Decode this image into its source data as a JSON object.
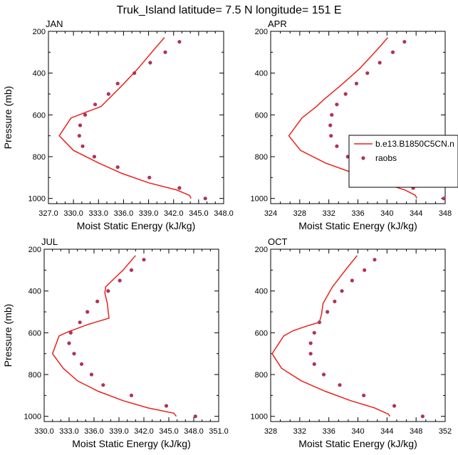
{
  "figure_title": "Truk_Island  latitude= 7.5 N longitude= 151 E",
  "colors": {
    "model": "#e8221c",
    "obs": "#b0325a",
    "axis": "#000000"
  },
  "legend": {
    "model_label": "b.e13.B1850C5CN.n",
    "obs_label": "raobs",
    "placement": "right edge of APR panel"
  },
  "chart_data": [
    {
      "type": "line",
      "title": "JAN",
      "xlabel": "Moist Static Energy (kJ/kg)",
      "ylabel": "Pressure (mb)",
      "xlim": [
        327,
        348
      ],
      "xticks": [
        327,
        330,
        333,
        336,
        339,
        342,
        345,
        348
      ],
      "xticklabels": [
        "327.0",
        "330.0",
        "333.0",
        "336.0",
        "339.0",
        "342.0",
        "345.0",
        "348.0"
      ],
      "ylim": [
        1025,
        200
      ],
      "yticks": [
        200,
        400,
        600,
        800,
        1000
      ],
      "yticklabels": [
        "200",
        "400",
        "600",
        "800",
        "1000"
      ],
      "series": [
        {
          "name": "b.e13.B1850C5CN.n",
          "style": "line",
          "points": [
            [
              340.9,
              230
            ],
            [
              339.6,
              290
            ],
            [
              337.7,
              380
            ],
            [
              335.8,
              460
            ],
            [
              333.3,
              560
            ],
            [
              329.7,
              615
            ],
            [
              328.3,
              700
            ],
            [
              330.0,
              770
            ],
            [
              333.0,
              830
            ],
            [
              335.8,
              880
            ],
            [
              339.0,
              925
            ],
            [
              342.4,
              960
            ],
            [
              343.9,
              985
            ],
            [
              344.1,
              1000
            ]
          ]
        },
        {
          "name": "raobs",
          "style": "marker",
          "points": [
            [
              342.7,
              250
            ],
            [
              341.0,
              300
            ],
            [
              339.2,
              350
            ],
            [
              337.3,
              400
            ],
            [
              335.3,
              450
            ],
            [
              334.2,
              500
            ],
            [
              332.6,
              550
            ],
            [
              331.4,
              600
            ],
            [
              330.8,
              650
            ],
            [
              330.7,
              700
            ],
            [
              331.1,
              750
            ],
            [
              332.5,
              800
            ],
            [
              335.3,
              850
            ],
            [
              339.1,
              900
            ],
            [
              342.7,
              950
            ],
            [
              345.8,
              1000
            ]
          ]
        }
      ]
    },
    {
      "type": "line",
      "title": "APR",
      "xlabel": "Moist Static Energy (kJ/kg)",
      "ylabel": "",
      "xlim": [
        324,
        348
      ],
      "xticks": [
        324,
        328,
        332,
        336,
        340,
        344,
        348
      ],
      "xticklabels": [
        "324",
        "328",
        "332",
        "336",
        "340",
        "344",
        "348"
      ],
      "ylim": [
        1025,
        200
      ],
      "yticks": [
        200,
        400,
        600,
        800,
        1000
      ],
      "yticklabels": [
        "200",
        "400",
        "600",
        "800",
        "1000"
      ],
      "series": [
        {
          "name": "b.e13.B1850C5CN.n",
          "style": "line",
          "points": [
            [
              340.1,
              230
            ],
            [
              338.6,
              290
            ],
            [
              336.2,
              380
            ],
            [
              333.6,
              460
            ],
            [
              331.2,
              530
            ],
            [
              330.3,
              560
            ],
            [
              328.3,
              615
            ],
            [
              326.5,
              700
            ],
            [
              328.1,
              770
            ],
            [
              331.5,
              830
            ],
            [
              335.5,
              880
            ],
            [
              339.3,
              925
            ],
            [
              342.5,
              960
            ],
            [
              343.9,
              985
            ],
            [
              344.1,
              1000
            ]
          ]
        },
        {
          "name": "raobs",
          "style": "marker",
          "points": [
            [
              342.4,
              250
            ],
            [
              340.8,
              300
            ],
            [
              339.0,
              350
            ],
            [
              337.3,
              400
            ],
            [
              335.8,
              450
            ],
            [
              334.3,
              500
            ],
            [
              333.1,
              550
            ],
            [
              332.4,
              600
            ],
            [
              332.2,
              650
            ],
            [
              332.3,
              700
            ],
            [
              333.1,
              750
            ],
            [
              334.6,
              800
            ],
            [
              336.5,
              850
            ],
            [
              339.2,
              900
            ],
            [
              343.6,
              950
            ],
            [
              347.8,
              1000
            ]
          ]
        }
      ]
    },
    {
      "type": "line",
      "title": "JUL",
      "xlabel": "Moist Static Energy (kJ/kg)",
      "ylabel": "Pressure (mb)",
      "xlim": [
        330,
        351
      ],
      "xticks": [
        330,
        333,
        336,
        339,
        342,
        345,
        348,
        351
      ],
      "xticklabels": [
        "330.0",
        "333.0",
        "336.0",
        "339.0",
        "342.0",
        "345.0",
        "348.0",
        "351.0"
      ],
      "ylim": [
        1025,
        200
      ],
      "yticks": [
        200,
        400,
        600,
        800,
        1000
      ],
      "yticklabels": [
        "200",
        "400",
        "600",
        "800",
        "1000"
      ],
      "series": [
        {
          "name": "b.e13.B1850C5CN.n",
          "style": "line",
          "points": [
            [
              341.0,
              230
            ],
            [
              339.5,
              300
            ],
            [
              337.4,
              380
            ],
            [
              337.3,
              410
            ],
            [
              337.6,
              460
            ],
            [
              337.8,
              530
            ],
            [
              335.3,
              560
            ],
            [
              332.9,
              595
            ],
            [
              331.8,
              615
            ],
            [
              331.0,
              700
            ],
            [
              332.3,
              770
            ],
            [
              334.0,
              830
            ],
            [
              336.5,
              880
            ],
            [
              339.5,
              925
            ],
            [
              342.5,
              960
            ],
            [
              345.6,
              985
            ],
            [
              345.9,
              1000
            ]
          ]
        },
        {
          "name": "raobs",
          "style": "marker",
          "points": [
            [
              342.0,
              250
            ],
            [
              340.5,
              300
            ],
            [
              339.1,
              350
            ],
            [
              337.7,
              400
            ],
            [
              336.4,
              450
            ],
            [
              335.2,
              500
            ],
            [
              334.3,
              550
            ],
            [
              333.2,
              600
            ],
            [
              333.0,
              650
            ],
            [
              333.6,
              700
            ],
            [
              334.5,
              750
            ],
            [
              335.7,
              800
            ],
            [
              337.1,
              850
            ],
            [
              340.5,
              900
            ],
            [
              344.7,
              950
            ],
            [
              348.2,
              1000
            ]
          ]
        }
      ]
    },
    {
      "type": "line",
      "title": "OCT",
      "xlabel": "Moist Static Energy (kJ/kg)",
      "ylabel": "",
      "xlim": [
        328,
        352
      ],
      "xticks": [
        328,
        332,
        336,
        340,
        344,
        348,
        352
      ],
      "xticklabels": [
        "328",
        "332",
        "336",
        "340",
        "344",
        "348",
        "352"
      ],
      "ylim": [
        1025,
        200
      ],
      "yticks": [
        200,
        400,
        600,
        800,
        1000
      ],
      "yticklabels": [
        "200",
        "400",
        "600",
        "800",
        "1000"
      ],
      "series": [
        {
          "name": "b.e13.B1850C5CN.n",
          "style": "line",
          "points": [
            [
              339.9,
              230
            ],
            [
              338.5,
              290
            ],
            [
              336.5,
              380
            ],
            [
              335.2,
              460
            ],
            [
              335.0,
              510
            ],
            [
              334.7,
              550
            ],
            [
              333.2,
              565
            ],
            [
              331.1,
              590
            ],
            [
              329.8,
              615
            ],
            [
              328.2,
              700
            ],
            [
              329.5,
              770
            ],
            [
              332.2,
              830
            ],
            [
              335.5,
              880
            ],
            [
              339.0,
              925
            ],
            [
              342.3,
              960
            ],
            [
              344.2,
              990
            ],
            [
              344.4,
              1000
            ]
          ]
        },
        {
          "name": "raobs",
          "style": "marker",
          "points": [
            [
              342.3,
              250
            ],
            [
              340.9,
              300
            ],
            [
              339.2,
              350
            ],
            [
              337.8,
              400
            ],
            [
              336.8,
              450
            ],
            [
              335.8,
              500
            ],
            [
              334.7,
              550
            ],
            [
              334.0,
              600
            ],
            [
              333.5,
              650
            ],
            [
              333.5,
              700
            ],
            [
              334.0,
              750
            ],
            [
              335.3,
              800
            ],
            [
              337.5,
              850
            ],
            [
              340.8,
              900
            ],
            [
              345.0,
              950
            ],
            [
              348.9,
              1000
            ]
          ]
        }
      ]
    }
  ]
}
